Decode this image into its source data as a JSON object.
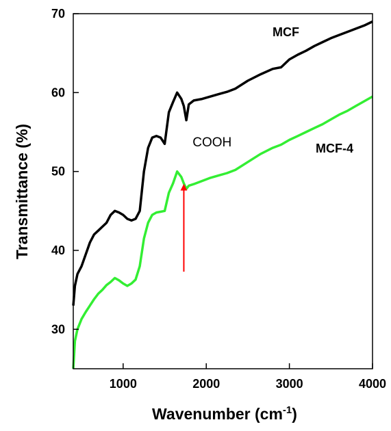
{
  "chart_data": {
    "type": "line",
    "title": "",
    "xlabel_main": "Wavenumber (cm",
    "xlabel_sup": "-1",
    "xlabel_close": ")",
    "ylabel": "Transmittance (%)",
    "xlim": [
      400,
      4000
    ],
    "ylim": [
      25,
      70
    ],
    "grid": false,
    "x_ticks": [
      1000,
      2000,
      3000,
      4000
    ],
    "y_ticks": [
      30,
      40,
      50,
      60,
      70
    ],
    "x_tick_labels": [
      "1000",
      "2000",
      "3000",
      "4000"
    ],
    "y_tick_labels": [
      "30",
      "40",
      "50",
      "60",
      "70"
    ],
    "series": [
      {
        "name": "MCF",
        "color": "#000000",
        "x": [
          400,
          420,
          450,
          500,
          550,
          600,
          650,
          700,
          750,
          800,
          850,
          900,
          950,
          1000,
          1050,
          1100,
          1150,
          1200,
          1250,
          1300,
          1350,
          1400,
          1450,
          1500,
          1550,
          1600,
          1650,
          1700,
          1730,
          1760,
          1790,
          1850,
          1950,
          2050,
          2150,
          2250,
          2350,
          2500,
          2650,
          2800,
          2900,
          3000,
          3100,
          3200,
          3300,
          3400,
          3500,
          3600,
          3700,
          3800,
          3900,
          4000
        ],
        "y": [
          33,
          35.5,
          37,
          38,
          39.5,
          41,
          42,
          42.5,
          43,
          43.5,
          44.5,
          45,
          44.8,
          44.5,
          44,
          43.8,
          44,
          45,
          50,
          53,
          54.3,
          54.5,
          54.3,
          53.5,
          57.5,
          58.8,
          60,
          59.2,
          58.3,
          56.5,
          58.5,
          59,
          59.2,
          59.5,
          59.8,
          60.1,
          60.5,
          61.5,
          62.3,
          63,
          63.2,
          64.2,
          64.8,
          65.3,
          65.9,
          66.4,
          66.9,
          67.3,
          67.7,
          68.1,
          68.5,
          69
        ]
      },
      {
        "name": "MCF-4",
        "color": "#33ee33",
        "x": [
          400,
          420,
          450,
          500,
          550,
          600,
          650,
          700,
          750,
          800,
          850,
          900,
          950,
          1000,
          1050,
          1100,
          1150,
          1200,
          1250,
          1300,
          1350,
          1400,
          1450,
          1500,
          1550,
          1600,
          1650,
          1700,
          1730,
          1760,
          1790,
          1850,
          1950,
          2050,
          2150,
          2250,
          2350,
          2500,
          2650,
          2800,
          2900,
          3000,
          3100,
          3200,
          3300,
          3400,
          3500,
          3600,
          3700,
          3800,
          3900,
          4000
        ],
        "y": [
          25,
          28.5,
          30,
          31.3,
          32.2,
          33,
          33.8,
          34.5,
          35,
          35.6,
          36,
          36.5,
          36.2,
          35.8,
          35.5,
          35.8,
          36.3,
          38,
          41.5,
          43.5,
          44.5,
          44.8,
          44.9,
          45,
          47.3,
          48.5,
          50,
          49.3,
          48.5,
          47.8,
          48.2,
          48.4,
          48.8,
          49.2,
          49.5,
          49.8,
          50.2,
          51.2,
          52.2,
          53,
          53.4,
          54,
          54.5,
          55,
          55.5,
          56,
          56.6,
          57.2,
          57.7,
          58.3,
          58.9,
          59.5
        ]
      }
    ],
    "annotations": [
      {
        "text": "COOH",
        "x": 2070,
        "y": 53.2
      },
      {
        "type": "arrow",
        "color": "#ff0000",
        "x": 1730,
        "y_from": 37.3,
        "y_to": 48
      }
    ]
  }
}
